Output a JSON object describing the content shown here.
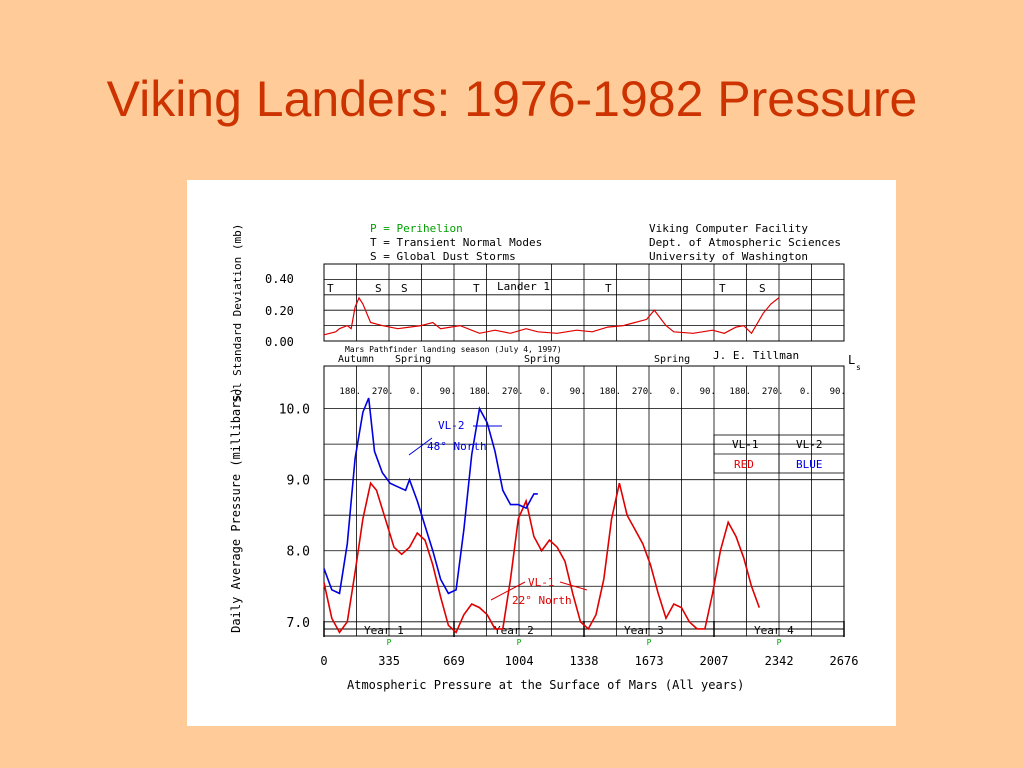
{
  "slide": {
    "title": "Viking Landers: 1976-1982 Pressure"
  },
  "header": {
    "legend_lines": [
      "P = Perihelion",
      "T = Transient Normal Modes",
      "S = Global Dust Storms"
    ],
    "credit_lines": [
      "Viking Computer Facility",
      "Dept. of Atmospheric Sciences",
      "University of Washington"
    ],
    "author": "J. E. Tillman"
  },
  "colors": {
    "vl1": "#e00000",
    "vl2": "#0000e0",
    "perihelion": "#00a000",
    "grid": "#000000"
  },
  "chart_data": [
    {
      "type": "line",
      "title": "Lander 1",
      "ylabel": "Sol Standard Deviation (mb)",
      "ylim": [
        0,
        0.5
      ],
      "yticks": [
        "0.40",
        "0.20",
        "0.00"
      ],
      "xlim": [
        0,
        2676
      ],
      "annotations": [
        "T",
        "S",
        "S",
        "T",
        "T",
        "T",
        "S"
      ],
      "series": [
        {
          "name": "VL-1",
          "x": [
            0,
            60,
            80,
            120,
            140,
            160,
            180,
            200,
            240,
            300,
            380,
            440,
            500,
            560,
            600,
            700,
            800,
            880,
            960,
            1040,
            1100,
            1200,
            1300,
            1380,
            1460,
            1540,
            1600,
            1660,
            1700,
            1760,
            1800,
            1900,
            2000,
            2060,
            2120,
            2160,
            2200,
            2260,
            2300,
            2340
          ],
          "y": [
            0.04,
            0.06,
            0.08,
            0.1,
            0.08,
            0.22,
            0.28,
            0.24,
            0.12,
            0.1,
            0.08,
            0.09,
            0.1,
            0.12,
            0.08,
            0.1,
            0.05,
            0.07,
            0.05,
            0.08,
            0.06,
            0.05,
            0.07,
            0.06,
            0.09,
            0.1,
            0.12,
            0.14,
            0.2,
            0.1,
            0.06,
            0.05,
            0.07,
            0.05,
            0.09,
            0.1,
            0.05,
            0.18,
            0.24,
            0.28
          ]
        }
      ]
    },
    {
      "type": "line",
      "title": "Atmospheric Pressure at the Surface of Mars (All years)",
      "xlabel": "Atmospheric Pressure at the Surface of Mars (All years)",
      "ylabel": "Daily Average Pressure (millibars)",
      "ylim": [
        6.8,
        10.6
      ],
      "yticks": [
        "10.0",
        "9.0",
        "8.0",
        "7.0"
      ],
      "xlim": [
        0,
        2676
      ],
      "xticks": [
        "0",
        "335",
        "669",
        "1004",
        "1338",
        "1673",
        "2007",
        "2342",
        "2676"
      ],
      "years": [
        "Year 1",
        "Year 2",
        "Year 3",
        "Year 4"
      ],
      "perihelion_label": "P",
      "perihelion_x": [
        335,
        1004,
        1673,
        2342
      ],
      "season_labels": [
        "Autumn",
        "Spring",
        "Spring",
        "Spring"
      ],
      "ls_label": "L",
      "ls_sub": "s",
      "ls_ticks": [
        "180.",
        "270.",
        "0.",
        "90.",
        "180.",
        "270.",
        "0.",
        "90.",
        "180.",
        "270.",
        "0.",
        "90.",
        "180.",
        "270.",
        "0.",
        "90."
      ],
      "pathfinder_note": "Mars Pathfinder landing season (July 4, 1997)",
      "legend_header": [
        "VL-1",
        "VL-2"
      ],
      "legend_values": [
        "RED",
        "BLUE"
      ],
      "annotations": [
        {
          "series": "VL-2",
          "lines": [
            "VL-2",
            "48° North"
          ]
        },
        {
          "series": "VL-1",
          "lines": [
            "VL-1",
            "22° North"
          ]
        }
      ],
      "series": [
        {
          "name": "VL-1",
          "x": [
            0,
            40,
            80,
            120,
            160,
            200,
            240,
            270,
            310,
            360,
            400,
            440,
            480,
            520,
            560,
            600,
            640,
            680,
            720,
            760,
            800,
            840,
            880,
            920,
            960,
            1000,
            1040,
            1080,
            1120,
            1160,
            1200,
            1240,
            1280,
            1320,
            1360,
            1400,
            1440,
            1480,
            1520,
            1560,
            1600,
            1640,
            1680,
            1720,
            1760,
            1800,
            1840,
            1880,
            1920,
            1960,
            2000,
            2040,
            2080,
            2120,
            2160,
            2200,
            2240
          ],
          "y": [
            7.55,
            7.05,
            6.85,
            7.0,
            7.7,
            8.45,
            8.95,
            8.85,
            8.5,
            8.05,
            7.95,
            8.05,
            8.25,
            8.15,
            7.8,
            7.35,
            6.95,
            6.85,
            7.1,
            7.25,
            7.2,
            7.1,
            6.9,
            6.9,
            7.6,
            8.45,
            8.7,
            8.2,
            8.0,
            8.15,
            8.05,
            7.85,
            7.4,
            7.0,
            6.9,
            7.1,
            7.6,
            8.45,
            8.95,
            8.5,
            8.3,
            8.1,
            7.8,
            7.4,
            7.05,
            7.25,
            7.2,
            7.0,
            6.9,
            6.9,
            7.4,
            8.0,
            8.4,
            8.2,
            7.9,
            7.5,
            7.2
          ]
        },
        {
          "name": "VL-2",
          "x": [
            0,
            40,
            80,
            120,
            160,
            200,
            230,
            260,
            300,
            340,
            380,
            420,
            440,
            480,
            520,
            560,
            600,
            640,
            680,
            720,
            760,
            800,
            840,
            880,
            920,
            960,
            1000,
            1040,
            1080,
            1100
          ],
          "y": [
            7.75,
            7.45,
            7.4,
            8.1,
            9.3,
            9.95,
            10.15,
            9.4,
            9.1,
            8.95,
            8.9,
            8.85,
            9.0,
            8.7,
            8.35,
            8.0,
            7.6,
            7.4,
            7.45,
            8.3,
            9.35,
            10.0,
            9.8,
            9.4,
            8.85,
            8.65,
            8.65,
            8.6,
            8.8,
            8.8
          ]
        }
      ]
    }
  ]
}
